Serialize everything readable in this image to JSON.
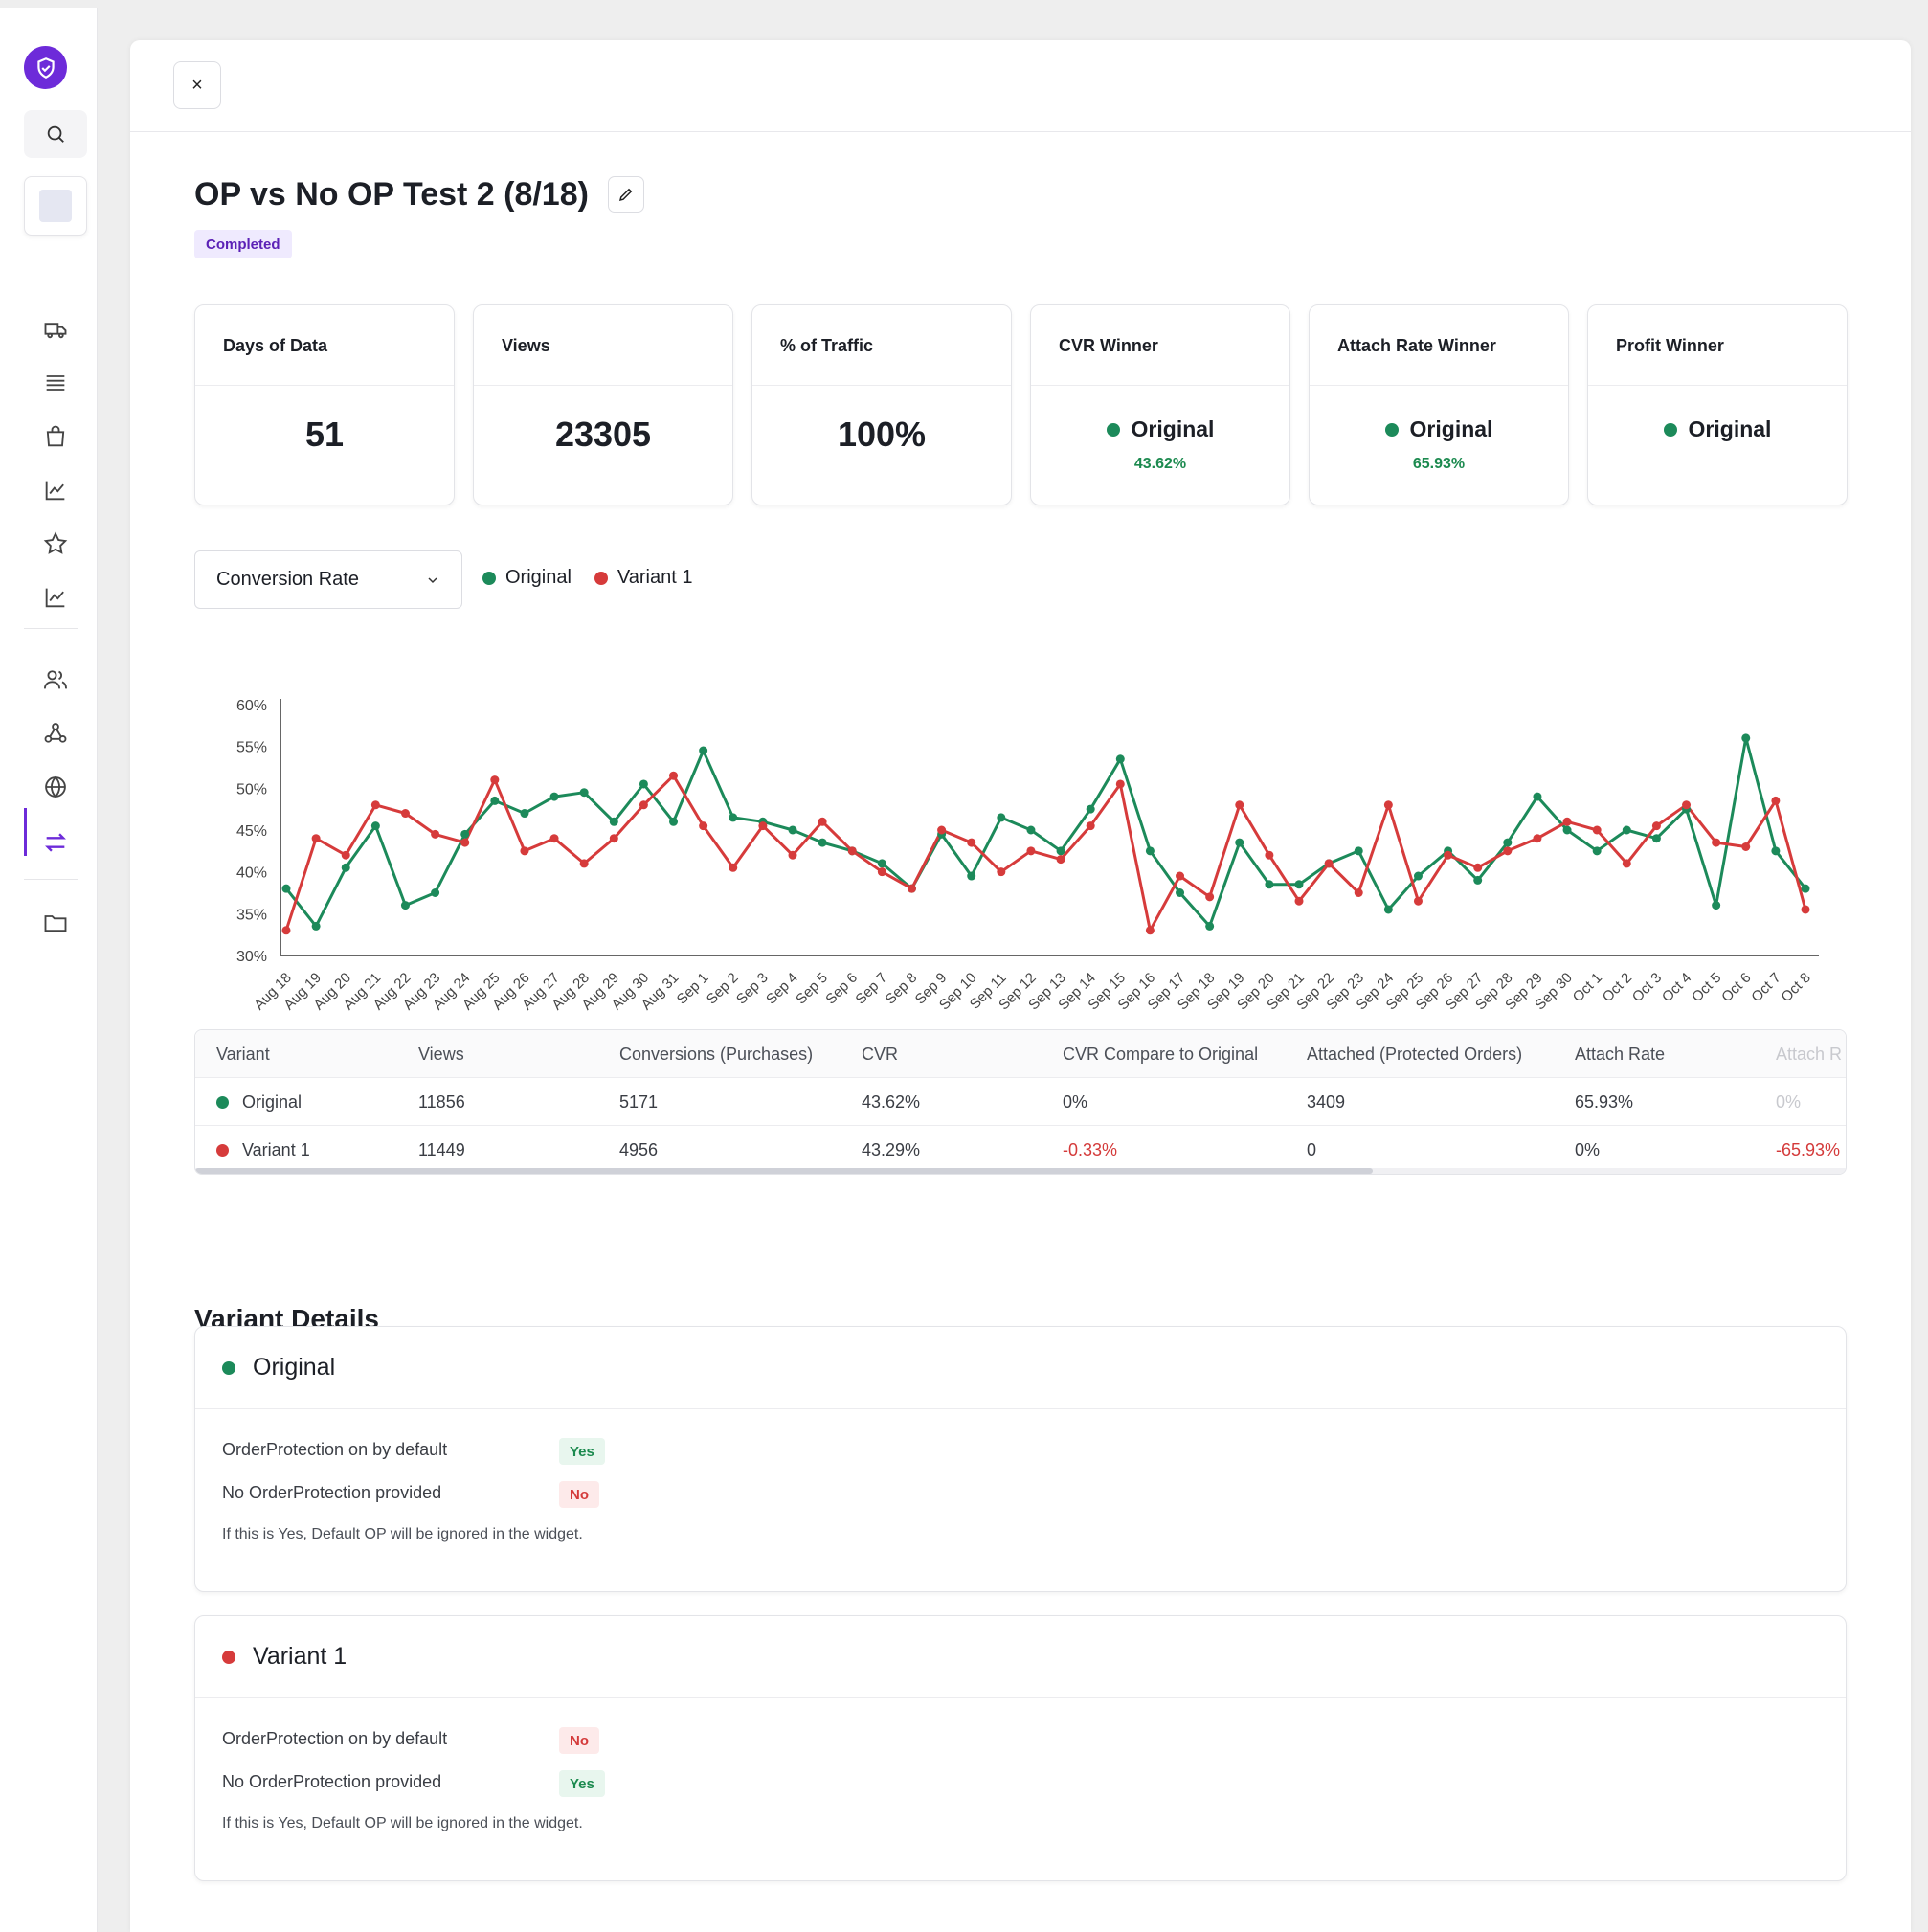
{
  "header": {
    "close_label": "×"
  },
  "test": {
    "title": "OP vs No OP Test 2 (8/18)",
    "status": "Completed"
  },
  "stats": [
    {
      "label": "Days of Data",
      "value": "51"
    },
    {
      "label": "Views",
      "value": "23305"
    },
    {
      "label": "% of Traffic",
      "value": "100%"
    },
    {
      "label": "CVR Winner",
      "winner": "Original",
      "sub": "43.62%"
    },
    {
      "label": "Attach Rate Winner",
      "winner": "Original",
      "sub": "65.93%"
    },
    {
      "label": "Profit Winner",
      "winner": "Original"
    }
  ],
  "metric_select": {
    "value": "Conversion Rate"
  },
  "legend": [
    "Original",
    "Variant 1"
  ],
  "colors": {
    "original": "#1c8a5a",
    "variant": "#d63b3b",
    "accent": "#6d2bd9"
  },
  "chart_data": {
    "type": "line",
    "x": [
      "Aug 18",
      "Aug 19",
      "Aug 20",
      "Aug 21",
      "Aug 22",
      "Aug 23",
      "Aug 24",
      "Aug 25",
      "Aug 26",
      "Aug 27",
      "Aug 28",
      "Aug 29",
      "Aug 30",
      "Aug 31",
      "Sep 1",
      "Sep 2",
      "Sep 3",
      "Sep 4",
      "Sep 5",
      "Sep 6",
      "Sep 7",
      "Sep 8",
      "Sep 9",
      "Sep 10",
      "Sep 11",
      "Sep 12",
      "Sep 13",
      "Sep 14",
      "Sep 15",
      "Sep 16",
      "Sep 17",
      "Sep 18",
      "Sep 19",
      "Sep 20",
      "Sep 21",
      "Sep 22",
      "Sep 23",
      "Sep 24",
      "Sep 25",
      "Sep 26",
      "Sep 27",
      "Sep 28",
      "Sep 29",
      "Sep 30",
      "Oct 1",
      "Oct 2",
      "Oct 3",
      "Oct 4",
      "Oct 5",
      "Oct 6",
      "Oct 7",
      "Oct 8"
    ],
    "yticks": [
      "60%",
      "55%",
      "50%",
      "45%",
      "40%",
      "35%",
      "30%"
    ],
    "ylim": [
      30,
      60
    ],
    "series": [
      {
        "name": "Original",
        "values": [
          38.0,
          33.5,
          40.5,
          45.5,
          36.0,
          37.5,
          44.5,
          48.5,
          47.0,
          49.0,
          49.5,
          46.0,
          50.5,
          46.0,
          54.5,
          46.5,
          46.0,
          45.0,
          43.5,
          42.5,
          41.0,
          38.0,
          44.5,
          39.5,
          46.5,
          45.0,
          42.5,
          47.5,
          53.5,
          42.5,
          37.5,
          33.5,
          43.5,
          38.5,
          38.5,
          41.0,
          42.5,
          35.5,
          39.5,
          42.5,
          39.0,
          43.5,
          49.0,
          45.0,
          42.5,
          45.0,
          44.0,
          47.5,
          36.0,
          56.0,
          42.5,
          38.0
        ]
      },
      {
        "name": "Variant 1",
        "values": [
          33.0,
          44.0,
          42.0,
          48.0,
          47.0,
          44.5,
          43.5,
          51.0,
          42.5,
          44.0,
          41.0,
          44.0,
          48.0,
          51.5,
          45.5,
          40.5,
          45.5,
          42.0,
          46.0,
          42.5,
          40.0,
          38.0,
          45.0,
          43.5,
          40.0,
          42.5,
          41.5,
          45.5,
          50.5,
          33.0,
          39.5,
          37.0,
          48.0,
          42.0,
          36.5,
          41.0,
          37.5,
          48.0,
          36.5,
          42.0,
          40.5,
          42.5,
          44.0,
          46.0,
          45.0,
          41.0,
          45.5,
          48.0,
          43.5,
          43.0,
          48.5,
          35.5
        ]
      }
    ]
  },
  "table": {
    "headers": [
      "Variant",
      "Views",
      "Conversions (Purchases)",
      "CVR",
      "CVR Compare to Original",
      "Attached (Protected Orders)",
      "Attach Rate",
      "Attach R"
    ],
    "rows": [
      {
        "variant": "Original",
        "views": "11856",
        "conversions": "5171",
        "cvr": "43.62%",
        "cvr_compare": "0%",
        "attached": "3409",
        "attach_rate": "65.93%",
        "attach_compare": "0%"
      },
      {
        "variant": "Variant 1",
        "views": "11449",
        "conversions": "4956",
        "cvr": "43.29%",
        "cvr_compare": "-0.33%",
        "attached": "0",
        "attach_rate": "0%",
        "attach_compare": "-65.93%"
      }
    ]
  },
  "details": {
    "title": "Variant Details",
    "cards": [
      {
        "name": "Original",
        "op_default_label": "OrderProtection on by default",
        "op_default": "Yes",
        "no_op_label": "No OrderProtection provided",
        "no_op": "No",
        "note": "If this is Yes, Default OP will be ignored in the widget."
      },
      {
        "name": "Variant 1",
        "op_default_label": "OrderProtection on by default",
        "op_default": "No",
        "no_op_label": "No OrderProtection provided",
        "no_op": "Yes",
        "note": "If this is Yes, Default OP will be ignored in the widget."
      }
    ]
  }
}
